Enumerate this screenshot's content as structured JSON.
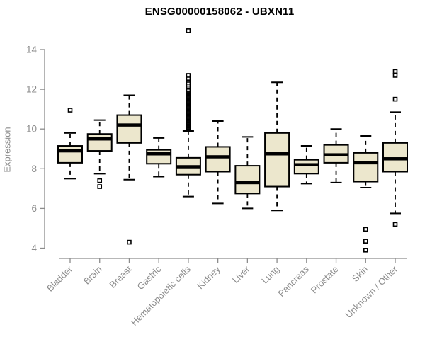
{
  "title": "ENSG00000158062 - UBXN11",
  "colors": {
    "box_fill": "#ece7cd",
    "box_border": "#000000",
    "median": "#000000",
    "whisker": "#000000",
    "axis": "#8c8c8c",
    "tick_label": "#8c8c8c",
    "title": "#000000",
    "outlier_fill": "#ffffff",
    "outlier_border": "#000000",
    "background": "#ffffff"
  },
  "chart_data": {
    "type": "boxplot",
    "title": "ENSG00000158062 - UBXN11",
    "xlabel": "",
    "ylabel": "Expression",
    "ylim": [
      4,
      15.2
    ],
    "yticks": [
      4,
      6,
      8,
      10,
      12,
      14
    ],
    "grid": false,
    "legend": false,
    "categories": [
      "Bladder",
      "Brain",
      "Breast",
      "Gastric",
      "Hematopoietic cells",
      "Kidney",
      "Liver",
      "Lung",
      "Pancreas",
      "Prostate",
      "Skin",
      "Unknown / Other"
    ],
    "series": [
      {
        "name": "Bladder",
        "whisker_low": 7.5,
        "q1": 8.3,
        "median": 8.9,
        "q3": 9.15,
        "whisker_high": 9.8,
        "outliers": [
          10.95
        ]
      },
      {
        "name": "Brain",
        "whisker_low": 7.75,
        "q1": 8.9,
        "median": 9.5,
        "q3": 9.75,
        "whisker_high": 10.45,
        "outliers": [
          7.4,
          7.1
        ]
      },
      {
        "name": "Breast",
        "whisker_low": 7.45,
        "q1": 9.3,
        "median": 10.2,
        "q3": 10.7,
        "whisker_high": 11.7,
        "outliers": [
          4.3
        ]
      },
      {
        "name": "Gastric",
        "whisker_low": 7.6,
        "q1": 8.25,
        "median": 8.75,
        "q3": 8.95,
        "whisker_high": 9.55,
        "outliers": []
      },
      {
        "name": "Hematopoietic cells",
        "whisker_low": 6.6,
        "q1": 7.7,
        "median": 8.1,
        "q3": 8.55,
        "whisker_high": 9.9,
        "outliers": [
          10.0,
          10.05,
          10.1,
          10.15,
          10.2,
          10.25,
          10.3,
          10.35,
          10.4,
          10.45,
          10.5,
          10.55,
          10.6,
          10.65,
          10.7,
          10.75,
          10.8,
          10.85,
          10.9,
          10.95,
          11.0,
          11.05,
          11.1,
          11.15,
          11.2,
          11.25,
          11.3,
          11.35,
          11.4,
          11.45,
          11.5,
          11.55,
          11.6,
          11.65,
          11.7,
          11.75,
          11.8,
          11.85,
          11.9,
          11.95,
          12.0,
          12.1,
          12.15,
          12.25,
          12.35,
          12.45,
          12.55,
          12.7,
          14.95
        ]
      },
      {
        "name": "Kidney",
        "whisker_low": 6.25,
        "q1": 7.85,
        "median": 8.6,
        "q3": 9.1,
        "whisker_high": 10.4,
        "outliers": []
      },
      {
        "name": "Liver",
        "whisker_low": 6.0,
        "q1": 6.75,
        "median": 7.3,
        "q3": 8.15,
        "whisker_high": 9.6,
        "outliers": []
      },
      {
        "name": "Lung",
        "whisker_low": 5.9,
        "q1": 7.1,
        "median": 8.75,
        "q3": 9.8,
        "whisker_high": 12.35,
        "outliers": []
      },
      {
        "name": "Pancreas",
        "whisker_low": 7.25,
        "q1": 7.75,
        "median": 8.2,
        "q3": 8.45,
        "whisker_high": 9.15,
        "outliers": []
      },
      {
        "name": "Prostate",
        "whisker_low": 7.3,
        "q1": 8.3,
        "median": 8.7,
        "q3": 9.2,
        "whisker_high": 10.0,
        "outliers": []
      },
      {
        "name": "Skin",
        "whisker_low": 7.05,
        "q1": 7.35,
        "median": 8.3,
        "q3": 8.8,
        "whisker_high": 9.65,
        "outliers": [
          4.95,
          4.35,
          3.9
        ]
      },
      {
        "name": "Unknown / Other",
        "whisker_low": 5.75,
        "q1": 7.85,
        "median": 8.5,
        "q3": 9.3,
        "whisker_high": 10.85,
        "outliers": [
          12.9,
          12.7,
          11.5,
          5.2
        ]
      }
    ]
  }
}
